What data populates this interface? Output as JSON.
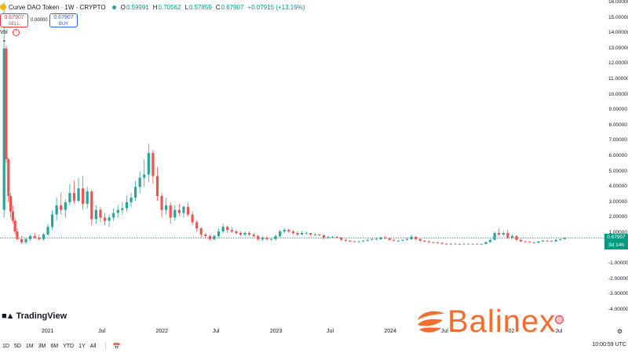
{
  "header": {
    "title": "Curve DAO Token · 1W · CRYPTO",
    "ohlc": [
      {
        "label": "O",
        "value": "0.59991"
      },
      {
        "label": "H",
        "value": "0.70562"
      },
      {
        "label": "L",
        "value": "0.57859"
      },
      {
        "label": "C",
        "value": "0.67907"
      }
    ],
    "change": "+0.07915 (+13.19%)"
  },
  "trade": {
    "sell_price": "0.67907",
    "sell_label": "SELL",
    "spread": "0.00000",
    "buy_price": "0.67907",
    "buy_label": "BUY"
  },
  "volume": {
    "label": "Vol"
  },
  "price_axis": {
    "ticks": [
      "16.00000",
      "15.00000",
      "14.00000",
      "13.00000",
      "12.00000",
      "11.00000",
      "10.00000",
      "9.00000",
      "8.00000",
      "7.00000",
      "6.00000",
      "5.00000",
      "4.00000",
      "3.00000",
      "2.00000",
      "1.00000",
      "0.00000",
      "-1.00000",
      "-2.00000",
      "-3.00000",
      "-4.00000"
    ],
    "current_price": "0.67907",
    "countdown": "3d 14h"
  },
  "time_axis": {
    "labels": [
      "2021",
      "Jul",
      "2022",
      "Jul",
      "2023",
      "Jul",
      "2024",
      "Jul",
      "02",
      "Jul"
    ]
  },
  "bottom_bar": {
    "ranges": [
      "1D",
      "5D",
      "1M",
      "3M",
      "6M",
      "YTD",
      "1Y",
      "All"
    ],
    "clock": "10:00:59 UTC"
  },
  "branding": {
    "tradingview": "TradingView",
    "watermark": "Balinex"
  },
  "colors": {
    "up": "#26a69a",
    "down": "#ef5350",
    "current_price": "#089981",
    "watermark": "#f36d2e"
  },
  "chart_data": {
    "type": "candlestick",
    "symbol": "Curve DAO Token",
    "interval": "1W",
    "y_range": [
      -4,
      16
    ],
    "x_range": [
      "2020-08",
      "2025-11"
    ],
    "current_price": 0.67907,
    "grid": false,
    "series": [
      {
        "t": "2020-08-14",
        "o": 2.5,
        "h": 16.0,
        "l": 2.0,
        "c": 13.0
      },
      {
        "t": "2020-08-21",
        "o": 13.0,
        "h": 13.2,
        "l": 5.5,
        "c": 5.8
      },
      {
        "t": "2020-08-28",
        "o": 5.8,
        "h": 5.9,
        "l": 3.0,
        "c": 3.4
      },
      {
        "t": "2020-09-04",
        "o": 3.4,
        "h": 3.6,
        "l": 2.0,
        "c": 2.4
      },
      {
        "t": "2020-09-11",
        "o": 2.4,
        "h": 2.8,
        "l": 1.6,
        "c": 1.8
      },
      {
        "t": "2020-09-18",
        "o": 1.8,
        "h": 2.0,
        "l": 0.9,
        "c": 1.1
      },
      {
        "t": "2020-09-25",
        "o": 1.1,
        "h": 1.3,
        "l": 0.5,
        "c": 0.6
      },
      {
        "t": "2020-10-09",
        "o": 0.6,
        "h": 0.8,
        "l": 0.3,
        "c": 0.4
      },
      {
        "t": "2020-10-23",
        "o": 0.4,
        "h": 0.7,
        "l": 0.3,
        "c": 0.6
      },
      {
        "t": "2020-11-06",
        "o": 0.6,
        "h": 0.9,
        "l": 0.5,
        "c": 0.8
      },
      {
        "t": "2020-11-20",
        "o": 0.8,
        "h": 1.0,
        "l": 0.6,
        "c": 0.7
      },
      {
        "t": "2020-12-04",
        "o": 0.7,
        "h": 0.9,
        "l": 0.5,
        "c": 0.6
      },
      {
        "t": "2020-12-18",
        "o": 0.6,
        "h": 1.0,
        "l": 0.5,
        "c": 0.9
      },
      {
        "t": "2021-01-01",
        "o": 0.9,
        "h": 1.6,
        "l": 0.8,
        "c": 1.4
      },
      {
        "t": "2021-01-15",
        "o": 1.4,
        "h": 2.5,
        "l": 1.2,
        "c": 2.2
      },
      {
        "t": "2021-01-29",
        "o": 2.2,
        "h": 3.3,
        "l": 1.8,
        "c": 2.8
      },
      {
        "t": "2021-02-12",
        "o": 2.8,
        "h": 3.6,
        "l": 2.2,
        "c": 2.5
      },
      {
        "t": "2021-02-26",
        "o": 2.5,
        "h": 3.2,
        "l": 2.0,
        "c": 3.0
      },
      {
        "t": "2021-03-12",
        "o": 3.0,
        "h": 4.2,
        "l": 2.8,
        "c": 3.6
      },
      {
        "t": "2021-03-26",
        "o": 3.6,
        "h": 4.4,
        "l": 2.9,
        "c": 3.1
      },
      {
        "t": "2021-04-09",
        "o": 3.1,
        "h": 4.6,
        "l": 3.0,
        "c": 3.9
      },
      {
        "t": "2021-04-23",
        "o": 3.9,
        "h": 4.7,
        "l": 2.5,
        "c": 2.9
      },
      {
        "t": "2021-05-07",
        "o": 2.9,
        "h": 4.0,
        "l": 2.6,
        "c": 3.7
      },
      {
        "t": "2021-05-21",
        "o": 3.7,
        "h": 3.8,
        "l": 1.5,
        "c": 1.9
      },
      {
        "t": "2021-06-04",
        "o": 1.9,
        "h": 2.8,
        "l": 1.6,
        "c": 2.5
      },
      {
        "t": "2021-06-18",
        "o": 2.5,
        "h": 2.7,
        "l": 1.7,
        "c": 2.0
      },
      {
        "t": "2021-07-02",
        "o": 2.0,
        "h": 2.3,
        "l": 1.5,
        "c": 1.8
      },
      {
        "t": "2021-07-16",
        "o": 1.8,
        "h": 2.2,
        "l": 1.4,
        "c": 2.0
      },
      {
        "t": "2021-07-30",
        "o": 2.0,
        "h": 2.6,
        "l": 1.8,
        "c": 2.3
      },
      {
        "t": "2021-08-13",
        "o": 2.3,
        "h": 2.8,
        "l": 2.0,
        "c": 2.5
      },
      {
        "t": "2021-08-27",
        "o": 2.5,
        "h": 3.0,
        "l": 2.2,
        "c": 2.6
      },
      {
        "t": "2021-09-10",
        "o": 2.6,
        "h": 3.4,
        "l": 2.4,
        "c": 3.0
      },
      {
        "t": "2021-09-24",
        "o": 3.0,
        "h": 3.6,
        "l": 2.7,
        "c": 3.3
      },
      {
        "t": "2021-10-08",
        "o": 3.3,
        "h": 4.4,
        "l": 3.1,
        "c": 4.0
      },
      {
        "t": "2021-10-22",
        "o": 4.0,
        "h": 5.0,
        "l": 3.6,
        "c": 4.6
      },
      {
        "t": "2021-11-05",
        "o": 4.6,
        "h": 5.8,
        "l": 4.0,
        "c": 4.8
      },
      {
        "t": "2021-11-19",
        "o": 4.8,
        "h": 6.8,
        "l": 4.3,
        "c": 6.2
      },
      {
        "t": "2021-12-03",
        "o": 6.2,
        "h": 6.4,
        "l": 4.2,
        "c": 4.7
      },
      {
        "t": "2021-12-17",
        "o": 4.7,
        "h": 5.3,
        "l": 3.1,
        "c": 3.4
      },
      {
        "t": "2021-12-31",
        "o": 3.4,
        "h": 3.6,
        "l": 2.0,
        "c": 2.5
      },
      {
        "t": "2022-01-14",
        "o": 2.5,
        "h": 3.3,
        "l": 2.2,
        "c": 2.8
      },
      {
        "t": "2022-01-28",
        "o": 2.8,
        "h": 3.0,
        "l": 1.6,
        "c": 2.0
      },
      {
        "t": "2022-02-11",
        "o": 2.0,
        "h": 2.8,
        "l": 1.8,
        "c": 2.5
      },
      {
        "t": "2022-02-25",
        "o": 2.5,
        "h": 2.9,
        "l": 2.1,
        "c": 2.3
      },
      {
        "t": "2022-03-11",
        "o": 2.3,
        "h": 2.8,
        "l": 2.0,
        "c": 2.7
      },
      {
        "t": "2022-03-25",
        "o": 2.7,
        "h": 3.0,
        "l": 2.1,
        "c": 2.2
      },
      {
        "t": "2022-04-08",
        "o": 2.2,
        "h": 2.4,
        "l": 1.5,
        "c": 1.7
      },
      {
        "t": "2022-04-22",
        "o": 1.7,
        "h": 1.8,
        "l": 1.1,
        "c": 1.3
      },
      {
        "t": "2022-05-06",
        "o": 1.3,
        "h": 1.4,
        "l": 0.7,
        "c": 0.9
      },
      {
        "t": "2022-05-20",
        "o": 0.9,
        "h": 1.0,
        "l": 0.6,
        "c": 0.8
      },
      {
        "t": "2022-06-03",
        "o": 0.8,
        "h": 0.9,
        "l": 0.5,
        "c": 0.6
      },
      {
        "t": "2022-06-17",
        "o": 0.6,
        "h": 0.9,
        "l": 0.5,
        "c": 0.8
      },
      {
        "t": "2022-07-01",
        "o": 0.8,
        "h": 1.3,
        "l": 0.7,
        "c": 1.1
      },
      {
        "t": "2022-07-15",
        "o": 1.1,
        "h": 1.6,
        "l": 1.0,
        "c": 1.4
      },
      {
        "t": "2022-07-29",
        "o": 1.4,
        "h": 1.5,
        "l": 1.0,
        "c": 1.2
      },
      {
        "t": "2022-08-12",
        "o": 1.2,
        "h": 1.4,
        "l": 1.0,
        "c": 1.1
      },
      {
        "t": "2022-08-26",
        "o": 1.1,
        "h": 1.2,
        "l": 0.9,
        "c": 1.0
      },
      {
        "t": "2022-09-09",
        "o": 1.0,
        "h": 1.1,
        "l": 0.8,
        "c": 0.9
      },
      {
        "t": "2022-09-23",
        "o": 0.9,
        "h": 1.1,
        "l": 0.8,
        "c": 1.0
      },
      {
        "t": "2022-10-07",
        "o": 1.0,
        "h": 1.1,
        "l": 0.8,
        "c": 0.9
      },
      {
        "t": "2022-10-21",
        "o": 0.9,
        "h": 1.0,
        "l": 0.7,
        "c": 0.8
      },
      {
        "t": "2022-11-04",
        "o": 0.8,
        "h": 0.9,
        "l": 0.5,
        "c": 0.6
      },
      {
        "t": "2022-11-18",
        "o": 0.6,
        "h": 0.8,
        "l": 0.5,
        "c": 0.7
      },
      {
        "t": "2022-12-02",
        "o": 0.7,
        "h": 0.8,
        "l": 0.5,
        "c": 0.6
      },
      {
        "t": "2022-12-16",
        "o": 0.6,
        "h": 0.7,
        "l": 0.5,
        "c": 0.6
      },
      {
        "t": "2022-12-30",
        "o": 0.6,
        "h": 0.9,
        "l": 0.5,
        "c": 0.8
      },
      {
        "t": "2023-01-13",
        "o": 0.8,
        "h": 1.2,
        "l": 0.7,
        "c": 1.1
      },
      {
        "t": "2023-01-27",
        "o": 1.1,
        "h": 1.3,
        "l": 1.0,
        "c": 1.2
      },
      {
        "t": "2023-02-10",
        "o": 1.2,
        "h": 1.3,
        "l": 1.0,
        "c": 1.1
      },
      {
        "t": "2023-02-24",
        "o": 1.1,
        "h": 1.2,
        "l": 0.9,
        "c": 1.0
      },
      {
        "t": "2023-03-10",
        "o": 1.0,
        "h": 1.1,
        "l": 0.8,
        "c": 0.9
      },
      {
        "t": "2023-03-24",
        "o": 0.9,
        "h": 1.1,
        "l": 0.9,
        "c": 1.0
      },
      {
        "t": "2023-04-07",
        "o": 1.0,
        "h": 1.1,
        "l": 0.9,
        "c": 1.0
      },
      {
        "t": "2023-04-21",
        "o": 1.0,
        "h": 1.0,
        "l": 0.8,
        "c": 0.9
      },
      {
        "t": "2023-05-05",
        "o": 0.9,
        "h": 1.0,
        "l": 0.8,
        "c": 0.9
      },
      {
        "t": "2023-05-19",
        "o": 0.9,
        "h": 0.95,
        "l": 0.8,
        "c": 0.85
      },
      {
        "t": "2023-06-02",
        "o": 0.85,
        "h": 0.9,
        "l": 0.6,
        "c": 0.7
      },
      {
        "t": "2023-06-16",
        "o": 0.7,
        "h": 0.8,
        "l": 0.6,
        "c": 0.75
      },
      {
        "t": "2023-06-30",
        "o": 0.75,
        "h": 0.8,
        "l": 0.7,
        "c": 0.75
      },
      {
        "t": "2023-07-14",
        "o": 0.75,
        "h": 0.8,
        "l": 0.65,
        "c": 0.7
      },
      {
        "t": "2023-07-28",
        "o": 0.7,
        "h": 0.75,
        "l": 0.5,
        "c": 0.55
      },
      {
        "t": "2023-08-11",
        "o": 0.55,
        "h": 0.6,
        "l": 0.45,
        "c": 0.5
      },
      {
        "t": "2023-08-25",
        "o": 0.5,
        "h": 0.55,
        "l": 0.4,
        "c": 0.45
      },
      {
        "t": "2023-09-08",
        "o": 0.45,
        "h": 0.5,
        "l": 0.4,
        "c": 0.42
      },
      {
        "t": "2023-09-22",
        "o": 0.42,
        "h": 0.5,
        "l": 0.4,
        "c": 0.45
      },
      {
        "t": "2023-10-06",
        "o": 0.45,
        "h": 0.55,
        "l": 0.42,
        "c": 0.5
      },
      {
        "t": "2023-10-20",
        "o": 0.5,
        "h": 0.6,
        "l": 0.45,
        "c": 0.55
      },
      {
        "t": "2023-11-03",
        "o": 0.55,
        "h": 0.65,
        "l": 0.5,
        "c": 0.6
      },
      {
        "t": "2023-11-17",
        "o": 0.6,
        "h": 0.7,
        "l": 0.55,
        "c": 0.6
      },
      {
        "t": "2023-12-01",
        "o": 0.6,
        "h": 0.75,
        "l": 0.55,
        "c": 0.7
      },
      {
        "t": "2023-12-15",
        "o": 0.7,
        "h": 0.8,
        "l": 0.6,
        "c": 0.65
      },
      {
        "t": "2023-12-29",
        "o": 0.65,
        "h": 0.7,
        "l": 0.5,
        "c": 0.55
      },
      {
        "t": "2024-01-12",
        "o": 0.55,
        "h": 0.6,
        "l": 0.45,
        "c": 0.5
      },
      {
        "t": "2024-01-26",
        "o": 0.5,
        "h": 0.55,
        "l": 0.45,
        "c": 0.5
      },
      {
        "t": "2024-02-09",
        "o": 0.5,
        "h": 0.6,
        "l": 0.48,
        "c": 0.55
      },
      {
        "t": "2024-02-23",
        "o": 0.55,
        "h": 0.7,
        "l": 0.5,
        "c": 0.6
      },
      {
        "t": "2024-03-08",
        "o": 0.6,
        "h": 0.9,
        "l": 0.55,
        "c": 0.75
      },
      {
        "t": "2024-03-22",
        "o": 0.75,
        "h": 0.8,
        "l": 0.55,
        "c": 0.6
      },
      {
        "t": "2024-04-05",
        "o": 0.6,
        "h": 0.65,
        "l": 0.45,
        "c": 0.5
      },
      {
        "t": "2024-04-19",
        "o": 0.5,
        "h": 0.55,
        "l": 0.4,
        "c": 0.45
      },
      {
        "t": "2024-05-03",
        "o": 0.45,
        "h": 0.5,
        "l": 0.35,
        "c": 0.4
      },
      {
        "t": "2024-05-17",
        "o": 0.4,
        "h": 0.45,
        "l": 0.33,
        "c": 0.38
      },
      {
        "t": "2024-05-31",
        "o": 0.38,
        "h": 0.42,
        "l": 0.3,
        "c": 0.35
      },
      {
        "t": "2024-06-14",
        "o": 0.35,
        "h": 0.4,
        "l": 0.25,
        "c": 0.3
      },
      {
        "t": "2024-06-28",
        "o": 0.3,
        "h": 0.35,
        "l": 0.22,
        "c": 0.28
      },
      {
        "t": "2024-07-12",
        "o": 0.28,
        "h": 0.35,
        "l": 0.25,
        "c": 0.3
      },
      {
        "t": "2024-07-26",
        "o": 0.3,
        "h": 0.35,
        "l": 0.25,
        "c": 0.28
      },
      {
        "t": "2024-08-09",
        "o": 0.28,
        "h": 0.32,
        "l": 0.22,
        "c": 0.26
      },
      {
        "t": "2024-08-23",
        "o": 0.26,
        "h": 0.32,
        "l": 0.24,
        "c": 0.3
      },
      {
        "t": "2024-09-06",
        "o": 0.3,
        "h": 0.32,
        "l": 0.25,
        "c": 0.27
      },
      {
        "t": "2024-09-20",
        "o": 0.27,
        "h": 0.33,
        "l": 0.25,
        "c": 0.3
      },
      {
        "t": "2024-10-04",
        "o": 0.3,
        "h": 0.32,
        "l": 0.24,
        "c": 0.26
      },
      {
        "t": "2024-10-18",
        "o": 0.26,
        "h": 0.3,
        "l": 0.24,
        "c": 0.28
      },
      {
        "t": "2024-11-01",
        "o": 0.28,
        "h": 0.45,
        "l": 0.26,
        "c": 0.4
      },
      {
        "t": "2024-11-15",
        "o": 0.4,
        "h": 0.6,
        "l": 0.38,
        "c": 0.55
      },
      {
        "t": "2024-11-29",
        "o": 0.55,
        "h": 1.1,
        "l": 0.5,
        "c": 1.0
      },
      {
        "t": "2024-12-13",
        "o": 1.0,
        "h": 1.3,
        "l": 0.8,
        "c": 0.9
      },
      {
        "t": "2024-12-27",
        "o": 0.9,
        "h": 1.1,
        "l": 0.8,
        "c": 1.0
      },
      {
        "t": "2025-01-10",
        "o": 1.0,
        "h": 1.2,
        "l": 0.6,
        "c": 0.7
      },
      {
        "t": "2025-01-24",
        "o": 0.7,
        "h": 0.9,
        "l": 0.6,
        "c": 0.8
      },
      {
        "t": "2025-02-07",
        "o": 0.8,
        "h": 0.85,
        "l": 0.5,
        "c": 0.55
      },
      {
        "t": "2025-02-21",
        "o": 0.55,
        "h": 0.6,
        "l": 0.42,
        "c": 0.45
      },
      {
        "t": "2025-03-07",
        "o": 0.45,
        "h": 0.5,
        "l": 0.38,
        "c": 0.42
      },
      {
        "t": "2025-03-21",
        "o": 0.42,
        "h": 0.48,
        "l": 0.35,
        "c": 0.38
      },
      {
        "t": "2025-04-04",
        "o": 0.38,
        "h": 0.42,
        "l": 0.33,
        "c": 0.36
      },
      {
        "t": "2025-04-18",
        "o": 0.36,
        "h": 0.48,
        "l": 0.35,
        "c": 0.45
      },
      {
        "t": "2025-05-02",
        "o": 0.45,
        "h": 0.55,
        "l": 0.42,
        "c": 0.5
      },
      {
        "t": "2025-05-16",
        "o": 0.5,
        "h": 0.55,
        "l": 0.45,
        "c": 0.48
      },
      {
        "t": "2025-05-30",
        "o": 0.48,
        "h": 0.52,
        "l": 0.42,
        "c": 0.45
      },
      {
        "t": "2025-06-13",
        "o": 0.45,
        "h": 0.6,
        "l": 0.43,
        "c": 0.55
      },
      {
        "t": "2025-06-27",
        "o": 0.55,
        "h": 0.62,
        "l": 0.5,
        "c": 0.6
      },
      {
        "t": "2025-07-11",
        "o": 0.59991,
        "h": 0.70562,
        "l": 0.57859,
        "c": 0.67907
      }
    ]
  }
}
